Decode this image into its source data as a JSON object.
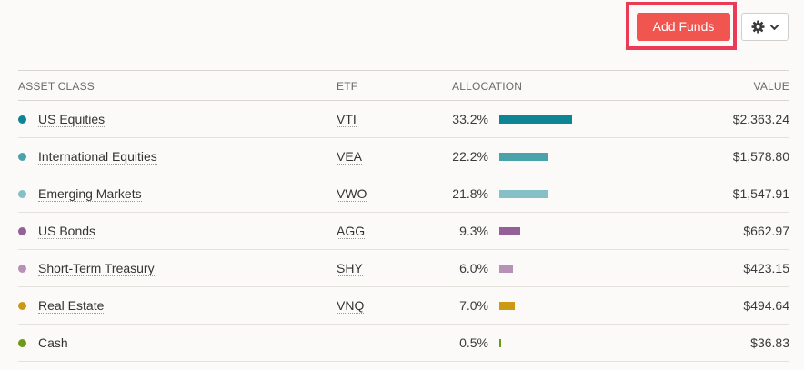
{
  "toolbar": {
    "add_funds_label": "Add Funds",
    "settings_icon": "gear-icon",
    "dropdown_icon": "chevron-down-icon",
    "highlight_color": "#ec3a55",
    "button_color": "#f0564f"
  },
  "table": {
    "headers": {
      "asset_class": "ASSET CLASS",
      "etf": "ETF",
      "allocation": "ALLOCATION",
      "value": "VALUE"
    },
    "rows": [
      {
        "asset_class": "US Equities",
        "etf": "VTI",
        "allocation": "33.2%",
        "allocation_value": 33.2,
        "value": "$2,363.24",
        "color": "#0e8592"
      },
      {
        "asset_class": "International Equities",
        "etf": "VEA",
        "allocation": "22.2%",
        "allocation_value": 22.2,
        "value": "$1,578.80",
        "color": "#4aa2aa"
      },
      {
        "asset_class": "Emerging Markets",
        "etf": "VWO",
        "allocation": "21.8%",
        "allocation_value": 21.8,
        "value": "$1,547.91",
        "color": "#84c0c5"
      },
      {
        "asset_class": "US Bonds",
        "etf": "AGG",
        "allocation": "9.3%",
        "allocation_value": 9.3,
        "value": "$662.97",
        "color": "#955f97"
      },
      {
        "asset_class": "Short-Term Treasury",
        "etf": "SHY",
        "allocation": "6.0%",
        "allocation_value": 6.0,
        "value": "$423.15",
        "color": "#b792b6"
      },
      {
        "asset_class": "Real Estate",
        "etf": "VNQ",
        "allocation": "7.0%",
        "allocation_value": 7.0,
        "value": "$494.64",
        "color": "#c99a12"
      },
      {
        "asset_class": "Cash",
        "etf": "",
        "allocation": "0.5%",
        "allocation_value": 0.5,
        "value": "$36.83",
        "color": "#6e9a1a"
      }
    ]
  }
}
